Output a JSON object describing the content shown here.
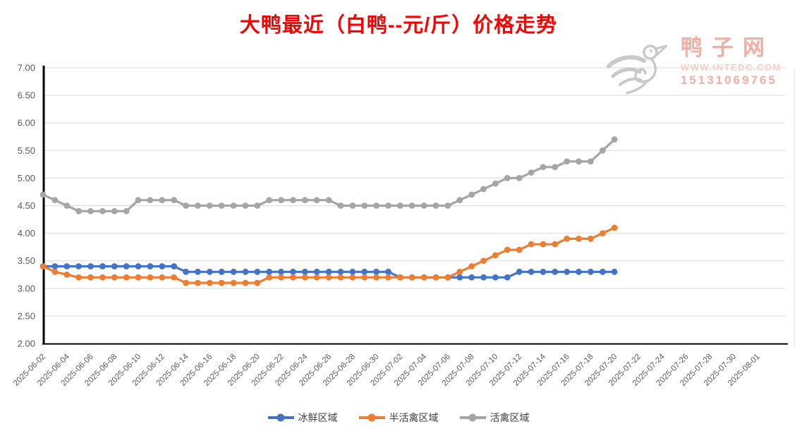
{
  "title": {
    "text": "大鸭最近（白鸭--元/斤）价格走势"
  },
  "colors": {
    "title": "#fe0000",
    "logo_pink": "#f2aea3",
    "logo_pink_light": "#f7cdc6",
    "logo_gray": "#c9c9c9",
    "gridline": "#d9d9d9",
    "axis": "#000000",
    "tick_label": "#595959"
  },
  "logo": {
    "icon": "duck-logo-icon",
    "site_name": "鸭子网",
    "website": "WWW.INTEDC.COM",
    "phone": "15131069765"
  },
  "chart_data": {
    "type": "line",
    "title": "大鸭最近（白鸭--元/斤）价格走势",
    "ylabel": "",
    "xlabel": "",
    "ylim": [
      2.0,
      7.0
    ],
    "y_tick_step": 0.5,
    "grid": true,
    "legend_position": "bottom",
    "y_axis_tick_labels": [
      "7.00",
      "6.50",
      "6.00",
      "5.50",
      "5.00",
      "4.50",
      "4.00",
      "3.50",
      "3.00",
      "2.50",
      "2.00"
    ],
    "x_axis_tick_labels": [
      "2025-06-02",
      "2025-06-04",
      "2025-06-06",
      "2025-06-08",
      "2025-06-10",
      "2025-06-12",
      "2025-06-14",
      "2025-06-16",
      "2025-06-18",
      "2025-06-20",
      "2025-06-22",
      "2025-06-24",
      "2025-06-26",
      "2025-06-28",
      "2025-06-30",
      "2025-07-02",
      "2025-07-04",
      "2025-07-06",
      "2025-07-08",
      "2025-07-10",
      "2025-07-12",
      "2025-07-14",
      "2025-07-16",
      "2025-07-18",
      "2025-07-20",
      "2025-07-22",
      "2025-07-24",
      "2025-07-26",
      "2025-07-28",
      "2025-07-30",
      "2025-08-01"
    ],
    "categories": [
      "2025-06-02",
      "2025-06-03",
      "2025-06-04",
      "2025-06-05",
      "2025-06-06",
      "2025-06-07",
      "2025-06-08",
      "2025-06-09",
      "2025-06-10",
      "2025-06-11",
      "2025-06-12",
      "2025-06-13",
      "2025-06-14",
      "2025-06-15",
      "2025-06-16",
      "2025-06-17",
      "2025-06-18",
      "2025-06-19",
      "2025-06-20",
      "2025-06-21",
      "2025-06-22",
      "2025-06-23",
      "2025-06-24",
      "2025-06-25",
      "2025-06-26",
      "2025-06-27",
      "2025-06-28",
      "2025-06-29",
      "2025-06-30",
      "2025-07-01",
      "2025-07-02",
      "2025-07-03",
      "2025-07-04",
      "2025-07-05",
      "2025-07-06",
      "2025-07-07",
      "2025-07-08",
      "2025-07-09",
      "2025-07-10",
      "2025-07-11",
      "2025-07-12",
      "2025-07-13",
      "2025-07-14",
      "2025-07-15",
      "2025-07-16",
      "2025-07-17",
      "2025-07-18",
      "2025-07-19",
      "2025-07-20"
    ],
    "series": [
      {
        "name": "冰鲜区域",
        "color": "#4472C4",
        "values": [
          3.4,
          3.4,
          3.4,
          3.4,
          3.4,
          3.4,
          3.4,
          3.4,
          3.4,
          3.4,
          3.4,
          3.4,
          3.3,
          3.3,
          3.3,
          3.3,
          3.3,
          3.3,
          3.3,
          3.3,
          3.3,
          3.3,
          3.3,
          3.3,
          3.3,
          3.3,
          3.3,
          3.3,
          3.3,
          3.3,
          3.2,
          3.2,
          3.2,
          3.2,
          3.2,
          3.2,
          3.2,
          3.2,
          3.2,
          3.2,
          3.3,
          3.3,
          3.3,
          3.3,
          3.3,
          3.3,
          3.3,
          3.3,
          3.3
        ]
      },
      {
        "name": "半活禽区域",
        "color": "#ED7D31",
        "values": [
          3.4,
          3.3,
          3.25,
          3.2,
          3.2,
          3.2,
          3.2,
          3.2,
          3.2,
          3.2,
          3.2,
          3.2,
          3.1,
          3.1,
          3.1,
          3.1,
          3.1,
          3.1,
          3.1,
          3.2,
          3.2,
          3.2,
          3.2,
          3.2,
          3.2,
          3.2,
          3.2,
          3.2,
          3.2,
          3.2,
          3.2,
          3.2,
          3.2,
          3.2,
          3.2,
          3.3,
          3.4,
          3.5,
          3.6,
          3.7,
          3.7,
          3.8,
          3.8,
          3.8,
          3.9,
          3.9,
          3.9,
          4.0,
          4.1
        ]
      },
      {
        "name": "活禽区域",
        "color": "#A5A5A5",
        "values": [
          4.7,
          4.6,
          4.5,
          4.4,
          4.4,
          4.4,
          4.4,
          4.4,
          4.6,
          4.6,
          4.6,
          4.6,
          4.5,
          4.5,
          4.5,
          4.5,
          4.5,
          4.5,
          4.5,
          4.6,
          4.6,
          4.6,
          4.6,
          4.6,
          4.6,
          4.5,
          4.5,
          4.5,
          4.5,
          4.5,
          4.5,
          4.5,
          4.5,
          4.5,
          4.5,
          4.6,
          4.7,
          4.8,
          4.9,
          5.0,
          5.0,
          5.1,
          5.2,
          5.2,
          5.3,
          5.3,
          5.3,
          5.5,
          5.7
        ]
      }
    ]
  }
}
